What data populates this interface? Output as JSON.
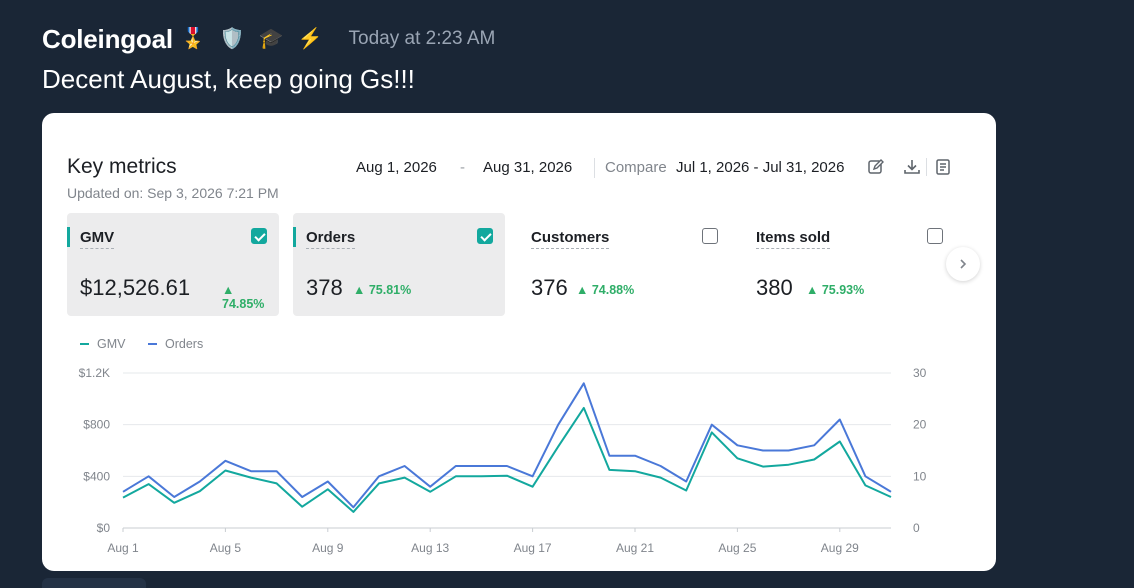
{
  "message": {
    "username": "Coleingoal",
    "badges": [
      {
        "icon": "medal-icon",
        "glyph": "🎖️"
      },
      {
        "icon": "shield-icon",
        "glyph": "🛡️"
      },
      {
        "icon": "graduation-cap-icon",
        "glyph": "🎓"
      },
      {
        "icon": "lightning-icon",
        "glyph": "⚡"
      }
    ],
    "timestamp": "Today at 2:23 AM",
    "text": "Decent August, keep going Gs!!!"
  },
  "dashboard": {
    "title": "Key metrics",
    "updated": "Updated on: Sep 3, 2026 7:21 PM",
    "date_start": "Aug 1, 2026",
    "date_sep": "-",
    "date_end": "Aug 31, 2026",
    "compare_label": "Compare",
    "compare_range": "Jul 1, 2026 - Jul 31, 2026",
    "tools": [
      "edit-icon",
      "download-icon",
      "document-icon"
    ],
    "accent": "#13a89e",
    "positive_color": "#2fae68",
    "metrics": [
      {
        "label": "GMV",
        "value": "$12,526.61",
        "change": "▲ 74.85%",
        "selected": true
      },
      {
        "label": "Orders",
        "value": "378",
        "change": "▲ 75.81%",
        "selected": true
      },
      {
        "label": "Customers",
        "value": "376",
        "change": "▲ 74.88%",
        "selected": false
      },
      {
        "label": "Items sold",
        "value": "380",
        "change": "▲ 75.93%",
        "selected": false
      }
    ]
  },
  "chart_data": {
    "type": "line",
    "x": [
      "Aug 1",
      "Aug 2",
      "Aug 3",
      "Aug 4",
      "Aug 5",
      "Aug 6",
      "Aug 7",
      "Aug 8",
      "Aug 9",
      "Aug 10",
      "Aug 11",
      "Aug 12",
      "Aug 13",
      "Aug 14",
      "Aug 15",
      "Aug 16",
      "Aug 17",
      "Aug 18",
      "Aug 19",
      "Aug 20",
      "Aug 21",
      "Aug 22",
      "Aug 23",
      "Aug 24",
      "Aug 25",
      "Aug 26",
      "Aug 27",
      "Aug 28",
      "Aug 29",
      "Aug 30",
      "Aug 31"
    ],
    "x_tick_labels": [
      "Aug 1",
      "Aug 5",
      "Aug 9",
      "Aug 13",
      "Aug 17",
      "Aug 21",
      "Aug 25",
      "Aug 29"
    ],
    "x_tick_indices": [
      0,
      4,
      8,
      12,
      16,
      20,
      24,
      28
    ],
    "series": [
      {
        "name": "GMV",
        "axis": "left",
        "color": "#13a89e",
        "values": [
          235,
          340,
          195,
          285,
          445,
          390,
          345,
          165,
          300,
          125,
          345,
          390,
          280,
          400,
          400,
          405,
          320,
          630,
          930,
          450,
          440,
          390,
          290,
          740,
          540,
          475,
          490,
          530,
          670,
          330,
          240
        ]
      },
      {
        "name": "Orders",
        "axis": "right",
        "color": "#4a78d8",
        "values": [
          7,
          10,
          6,
          9,
          13,
          11,
          11,
          6,
          9,
          4,
          10,
          12,
          8,
          12,
          12,
          12,
          10,
          20,
          28,
          14,
          14,
          12,
          9,
          20,
          16,
          15,
          15,
          16,
          21,
          10,
          7
        ]
      }
    ],
    "y_left": {
      "min": 0,
      "max": 1200,
      "ticks": [
        0,
        400,
        800,
        1200
      ],
      "tick_labels": [
        "$0",
        "$400",
        "$800",
        "$1.2K"
      ]
    },
    "y_right": {
      "min": 0,
      "max": 30,
      "ticks": [
        0,
        10,
        20,
        30
      ],
      "tick_labels": [
        "0",
        "10",
        "20",
        "30"
      ]
    },
    "grid": true,
    "legend": "top-left"
  }
}
